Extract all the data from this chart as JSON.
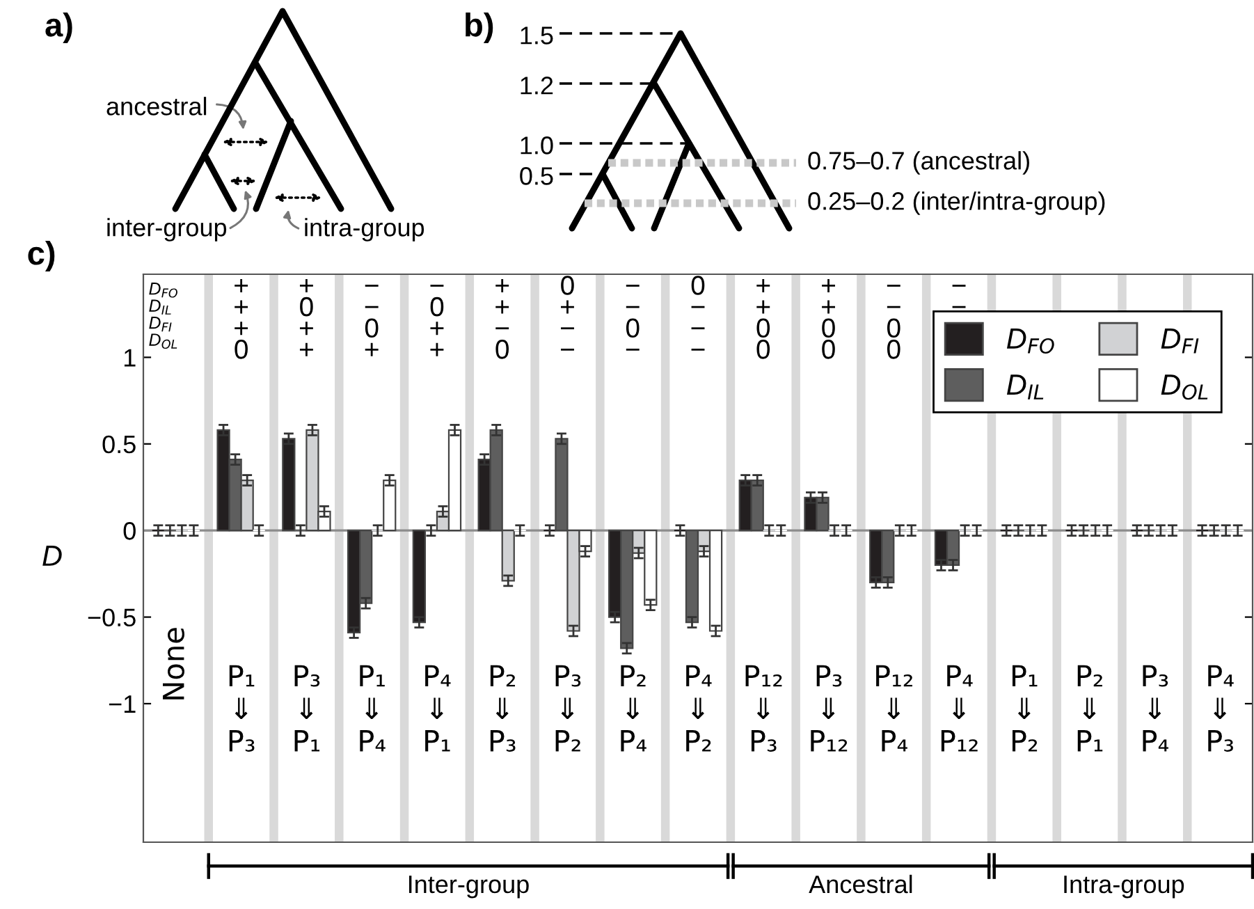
{
  "chart_data": [
    {
      "type": "other",
      "title": "a)",
      "annotations": [
        "ancestral",
        "inter-group",
        "intra-group"
      ]
    },
    {
      "type": "other",
      "title": "b)",
      "annotations": [
        "1.5",
        "1.2",
        "1.0",
        "0.5",
        "0.75–0.7 (ancestral)",
        "0.25–0.2 (inter/intra-group)"
      ]
    },
    {
      "type": "bar",
      "title": "c)",
      "ylabel": "D",
      "categories": [
        "None",
        "P₁\n⇓\nP₃",
        "P₃\n⇓\nP₁",
        "P₁\n⇓\nP₄",
        "P₄\n⇓\nP₁",
        "P₂\n⇓\nP₃",
        "P₃\n⇓\nP₂",
        "P₂\n⇓\nP₄",
        "P₄\n⇓\nP₂",
        "P₁₂\n⇓\nP₃",
        "P₃\n⇓\nP₁₂",
        "P₁₂\n⇓\nP₄",
        "P₄\n⇓\nP₁₂",
        "P₁\n⇓\nP₂",
        "P₂\n⇓\nP₁",
        "P₃\n⇓\nP₄",
        "P₄\n⇓\nP₃"
      ],
      "series": [
        {
          "name": "D$_{FO}$",
          "color": "#231f20",
          "values": [
            0,
            0.58,
            0.53,
            -0.59,
            -0.53,
            0.41,
            0,
            -0.5,
            0,
            0.29,
            0.19,
            -0.3,
            -0.2,
            0,
            0,
            0,
            0
          ],
          "errors": [
            0.03,
            0.03,
            0.03,
            0.03,
            0.03,
            0.03,
            0.03,
            0.03,
            0.03,
            0.03,
            0.03,
            0.03,
            0.03,
            0.03,
            0.03,
            0.03,
            0.03
          ]
        },
        {
          "name": "D$_{IL}$",
          "color": "#5e5e5e",
          "values": [
            0,
            0.41,
            0,
            -0.42,
            0,
            0.58,
            0.53,
            -0.68,
            -0.53,
            0.29,
            0.19,
            -0.3,
            -0.2,
            0,
            0,
            0,
            0
          ],
          "errors": [
            0.03,
            0.03,
            0.03,
            0.03,
            0.03,
            0.03,
            0.03,
            0.03,
            0.03,
            0.03,
            0.03,
            0.03,
            0.03,
            0.03,
            0.03,
            0.03,
            0.03
          ]
        },
        {
          "name": "D$_{FI}$",
          "color": "#d1d2d4",
          "values": [
            0,
            0.29,
            0.58,
            0,
            0.11,
            -0.29,
            -0.58,
            -0.13,
            -0.12,
            0,
            0,
            0,
            0,
            0,
            0,
            0,
            0
          ],
          "errors": [
            0.03,
            0.03,
            0.03,
            0.03,
            0.03,
            0.03,
            0.03,
            0.03,
            0.03,
            0.03,
            0.03,
            0.03,
            0.03,
            0.03,
            0.03,
            0.03,
            0.03
          ]
        },
        {
          "name": "D$_{OL}$",
          "color": "#ffffff",
          "values": [
            0,
            0,
            0.11,
            0.29,
            0.58,
            0,
            -0.12,
            -0.43,
            -0.58,
            0,
            0,
            0,
            0,
            0,
            0,
            0,
            0
          ],
          "errors": [
            0.03,
            0.03,
            0.03,
            0.03,
            0.03,
            0.03,
            0.03,
            0.03,
            0.03,
            0.03,
            0.03,
            0.03,
            0.03,
            0.03,
            0.03,
            0.03,
            0.03
          ]
        }
      ],
      "ylim": [
        -1.8,
        1.48
      ],
      "yticks": [
        {
          "value": -1,
          "label": "−1"
        },
        {
          "value": -0.5,
          "label": "−0.5"
        },
        0,
        0.5,
        1
      ],
      "ref_lines": [
        {
          "axis": "y",
          "value": 0,
          "color": "#8c8c8c"
        }
      ],
      "grid": "x",
      "legend": "top right",
      "annotations": [
        "D$_{FO}$",
        "D$_{IL}$",
        "D$_{FI}$",
        "D$_{OL}$",
        "+\n+\n+\n0",
        "+\n0\n+\n+",
        "−\n−\n0\n+",
        "−\n0\n+\n+",
        "+\n+\n−\n0",
        "0\n+\n−\n−",
        "−\n−\n0\n−",
        "0\n−\n−\n−",
        "+\n+\n0\n0",
        "+\n+\n0\n0",
        "−\n−\n0\n0",
        "−\n−\n0\n0",
        "Inter-group",
        "Ancestral",
        "Intra-group"
      ]
    }
  ]
}
